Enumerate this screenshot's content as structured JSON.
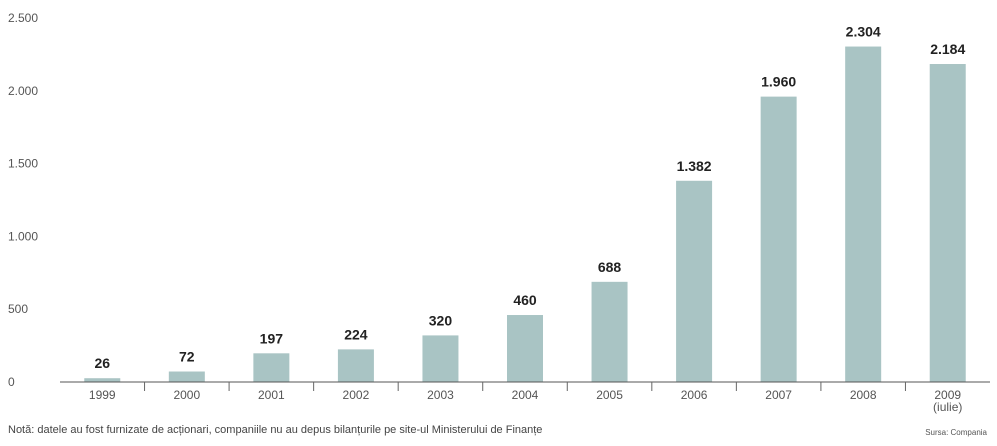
{
  "chart_data": {
    "type": "bar",
    "categories": [
      "1999",
      "2000",
      "2001",
      "2002",
      "2003",
      "2004",
      "2005",
      "2006",
      "2007",
      "2008",
      "2009\n(iulie)"
    ],
    "values": [
      26,
      72,
      197,
      224,
      320,
      460,
      688,
      1382,
      1960,
      2304,
      2184
    ],
    "data_labels": [
      "26",
      "72",
      "197",
      "224",
      "320",
      "460",
      "688",
      "1.382",
      "1.960",
      "2.304",
      "2.184"
    ],
    "y_ticks": [
      0,
      500,
      1000,
      1500,
      2000,
      2500
    ],
    "y_tick_labels": [
      "0",
      "500",
      "1.000",
      "1.500",
      "2.000",
      "2.500"
    ],
    "ylim": [
      0,
      2500
    ],
    "bar_color": "#a9c4c4",
    "grid": false
  },
  "footer": {
    "note": "Notă: datele au fost furnizate de acționari, companiile nu au depus bilanțurile pe site-ul Ministerului de Finanțe",
    "source": "Sursa: Compania"
  }
}
